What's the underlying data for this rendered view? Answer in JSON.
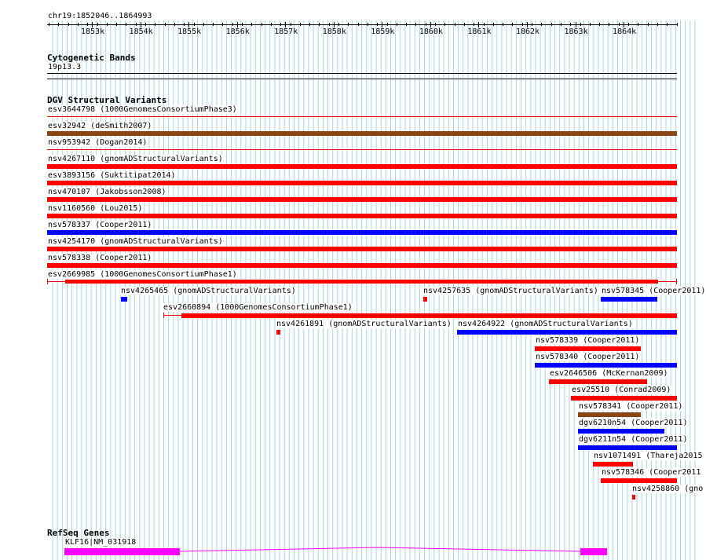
{
  "colors": {
    "grid": "#a8d4e6",
    "red": "#ff0000",
    "blue": "#0000ff",
    "brown": "#8b4513",
    "magenta": "#ff00ff"
  },
  "ruler": {
    "range_label": "chr19:1852046..1864993",
    "ticks": [
      "1853k",
      "1854k",
      "1855k",
      "1856k",
      "1857k",
      "1858k",
      "1859k",
      "1860k",
      "1861k",
      "1862k",
      "1863k",
      "1864k"
    ]
  },
  "cytoband": {
    "title": "Cytogenetic Bands",
    "band": "19p13.3"
  },
  "dgv": {
    "title": "DGV Structural Variants",
    "full_rows": [
      {
        "label": "esv3644798 (1000GenomesConsortiumPhase3)",
        "color": "red",
        "thin": true
      },
      {
        "label": "esv32942 (deSmith2007)",
        "color": "brown",
        "thin": false
      },
      {
        "label": "nsv953942 (Dogan2014)",
        "color": "red",
        "thin": true
      },
      {
        "label": "nsv4267110 (gnomADStructuralVariants)",
        "color": "red",
        "thin": false
      },
      {
        "label": "esv3893156 (Suktitipat2014)",
        "color": "red",
        "thin": false
      },
      {
        "label": "nsv470107 (Jakobsson2008)",
        "color": "red",
        "thin": false
      },
      {
        "label": "nsv1160560 (Lou2015)",
        "color": "red",
        "thin": false
      },
      {
        "label": "nsv578337 (Cooper2011)",
        "color": "blue",
        "thin": false
      },
      {
        "label": "nsv4254170 (gnomADStructuralVariants)",
        "color": "red",
        "thin": false
      },
      {
        "label": "nsv578338 (Cooper2011)",
        "color": "red",
        "thin": false
      }
    ],
    "esv2669985": {
      "label": "esv2669985 (1000GenomesConsortiumPhase1)"
    },
    "packed": [
      {
        "label": "nsv4265465 (gnomADStructuralVariants)",
        "color": "blue"
      },
      {
        "label": "nsv4257635 (gnomADStructuralVariants)",
        "color": "red"
      },
      {
        "label": "nsv578345 (Cooper2011)",
        "color": "blue"
      },
      {
        "label": "esv2660894 (1000GenomesConsortiumPhase1)",
        "color": "red"
      },
      {
        "label": "nsv4261891 (gnomADStructuralVariants)",
        "color": "red"
      },
      {
        "label": "nsv4264922 (gnomADStructuralVariants)",
        "color": "blue"
      },
      {
        "label": "nsv578339 (Cooper2011)",
        "color": "red"
      },
      {
        "label": "nsv578340 (Cooper2011)",
        "color": "blue"
      },
      {
        "label": "esv2646506 (McKernan2009)",
        "color": "red"
      },
      {
        "label": "esv25510 (Conrad2009)",
        "color": "red"
      },
      {
        "label": "nsv578341 (Cooper2011)",
        "color": "brown"
      },
      {
        "label": "dgv6210n54 (Cooper2011)",
        "color": "blue"
      },
      {
        "label": "dgv6211n54 (Cooper2011)",
        "color": "blue"
      },
      {
        "label": "nsv1071491 (Thareja2015",
        "color": "red"
      },
      {
        "label": "nsv578346 (Cooper2011",
        "color": "red"
      },
      {
        "label": "nsv4258860 (gno",
        "color": "red"
      }
    ]
  },
  "refseq": {
    "title": "RefSeq Genes",
    "gene_label": "KLF16|NM_031918"
  }
}
